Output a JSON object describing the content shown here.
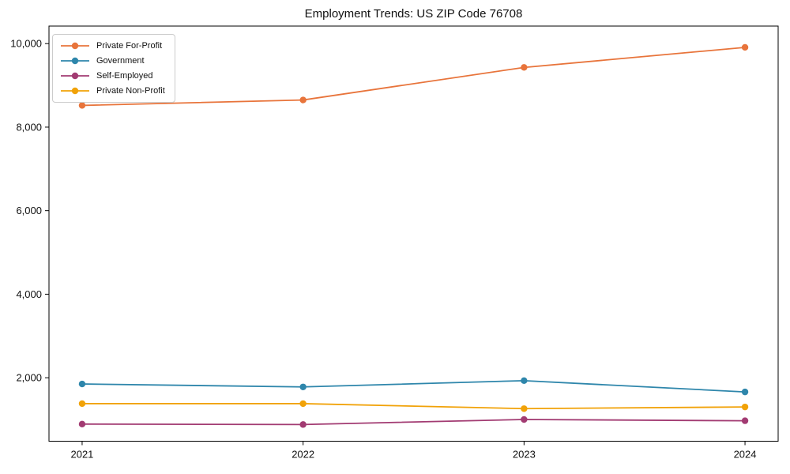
{
  "chart_data": {
    "type": "line",
    "title": "Employment Trends: US ZIP Code 76708",
    "xlabel": "",
    "ylabel": "",
    "categories": [
      "2021",
      "2022",
      "2023",
      "2024"
    ],
    "series": [
      {
        "name": "Private For-Profit",
        "color": "#E8743B",
        "values": [
          8520,
          8650,
          9430,
          9910
        ]
      },
      {
        "name": "Government",
        "color": "#2E86AB",
        "values": [
          1850,
          1780,
          1930,
          1660
        ]
      },
      {
        "name": "Self-Employed",
        "color": "#A23B72",
        "values": [
          890,
          880,
          1000,
          970
        ]
      },
      {
        "name": "Private Non-Profit",
        "color": "#F1A208",
        "values": [
          1380,
          1380,
          1260,
          1300
        ]
      }
    ],
    "y_ticks": [
      2000,
      4000,
      6000,
      8000,
      10000
    ],
    "y_tick_labels": [
      "2,000",
      "4,000",
      "6,000",
      "8,000",
      "10,000"
    ],
    "x_tick_labels": [
      "2021",
      "2022",
      "2023",
      "2024"
    ],
    "ylim": [
      480,
      10420
    ],
    "xlim_index": [
      -0.15,
      3.15
    ],
    "grid": false,
    "legend_position": "upper-left",
    "marker": "circle",
    "axis_color": "#000000"
  }
}
